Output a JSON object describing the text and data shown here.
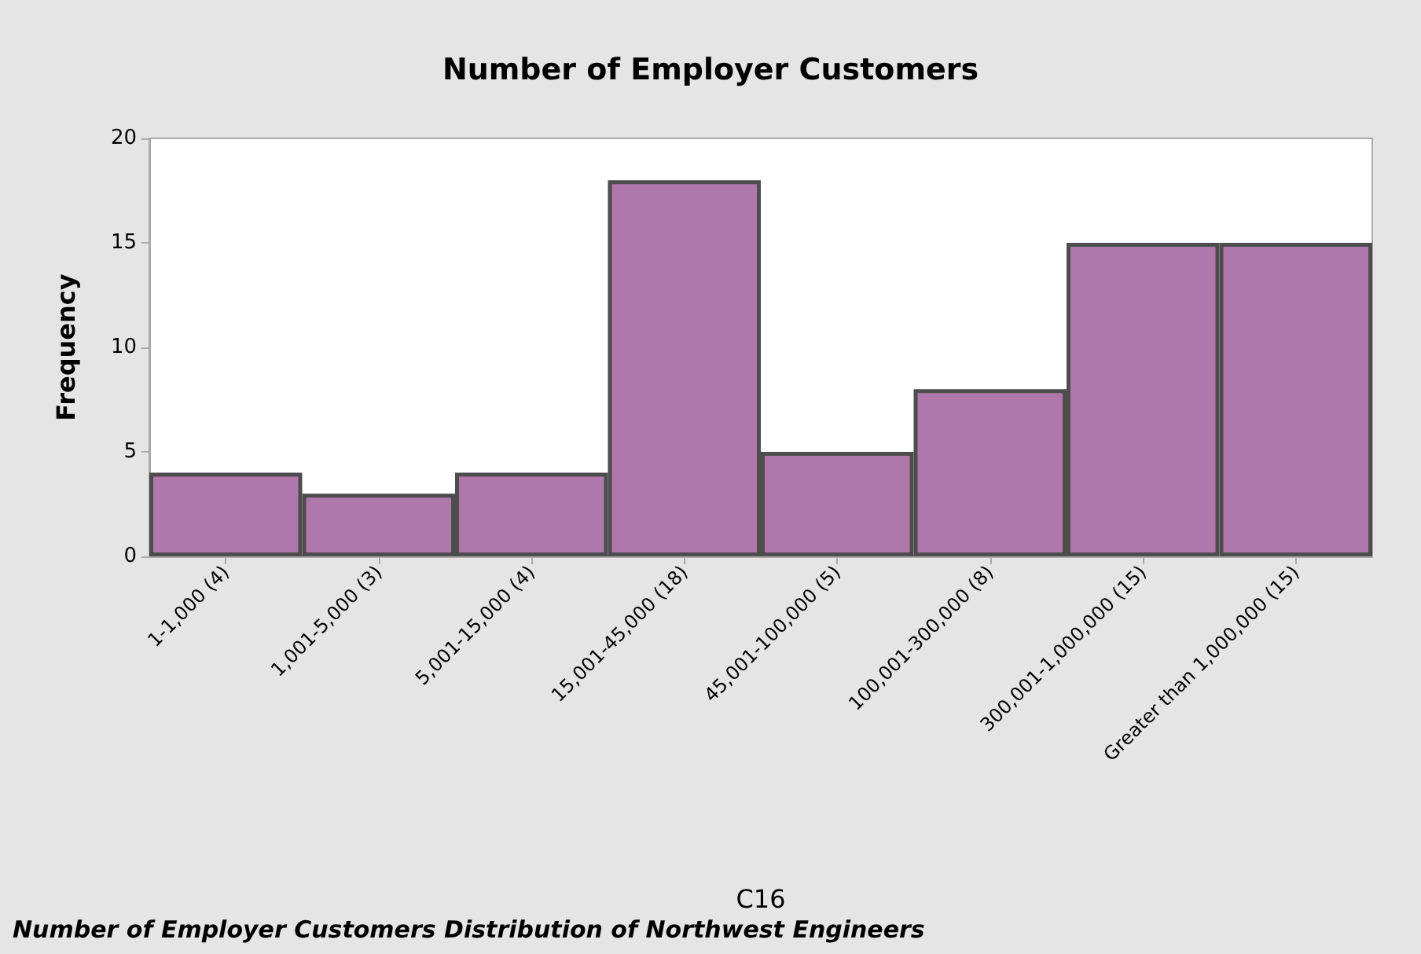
{
  "chart_data": {
    "type": "bar",
    "title": "Number of Employer Customers",
    "xlabel": "C16",
    "ylabel": "Frequency",
    "categories": [
      "1-1,000 (4)",
      "1,001-5,000 (3)",
      "5,001-15,000 (4)",
      "15,001-45,000 (18)",
      "45,001-100,000 (5)",
      "100,001-300,000 (8)",
      "300,001-1,000,000 (15)",
      "Greater than 1,000,000 (15)"
    ],
    "values": [
      4,
      3,
      4,
      18,
      5,
      8,
      15,
      15
    ],
    "color": "#b077ab",
    "ylim": [
      0,
      20
    ],
    "yticks": [
      0,
      5,
      10,
      15,
      20
    ],
    "grid": false,
    "annotations": [
      "Number of Employer Customers Distribution of Northwest Engineers"
    ]
  }
}
